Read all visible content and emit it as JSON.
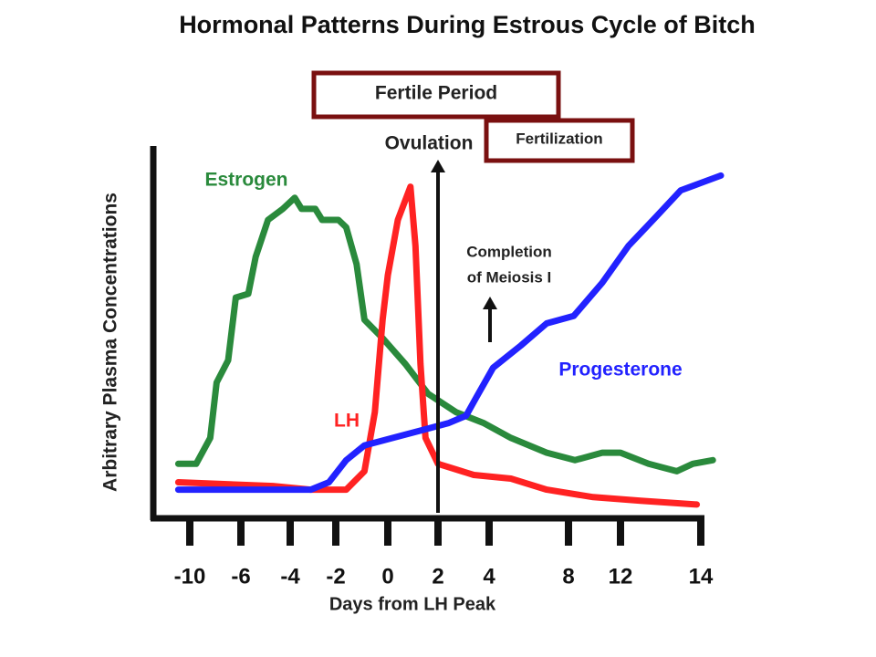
{
  "chart_data": {
    "type": "line",
    "title": "Hormonal Patterns During Estrous Cycle of Bitch",
    "xlabel": "Days from LH Peak",
    "ylabel": "Arbitrary Plasma Concentrations",
    "xticks": [
      -10,
      -6,
      -4,
      -2,
      0,
      2,
      4,
      8,
      12,
      14
    ],
    "ylim": [
      0,
      100
    ],
    "annotations": {
      "fertile_period": "Fertile Period",
      "ovulation": "Ovulation",
      "fertilization": "Fertilization",
      "meiosis": [
        "Completion",
        "of Meiosis I"
      ]
    },
    "series": [
      {
        "name": "Estrogen",
        "color": "#2a8a3c",
        "x": [
          -10.9,
          -9.5,
          -8.4,
          -7.9,
          -7.0,
          -6.4,
          -5.7,
          -5.4,
          -4.9,
          -4.3,
          -3.8,
          -3.5,
          -2.9,
          -2.6,
          -1.9,
          -1.6,
          -1.2,
          -0.9,
          -0.2,
          0.7,
          1.6,
          2.7,
          3.8,
          5.1,
          6.9,
          8.5,
          10.6,
          12,
          12.7,
          13.4,
          13.8,
          14.3
        ],
        "values": [
          14,
          14,
          21,
          36,
          42,
          59,
          60,
          70,
          80,
          83,
          86,
          83,
          83,
          80,
          80,
          78,
          68,
          53,
          48,
          41,
          33,
          28,
          25,
          21,
          17,
          15,
          17,
          17,
          14,
          12,
          14,
          15
        ]
      },
      {
        "name": "LH",
        "color": "#ff2222",
        "x": [
          -10.9,
          -4.7,
          -3.1,
          -1.6,
          -0.9,
          -0.5,
          -0.2,
          0,
          0.4,
          0.9,
          1.1,
          1.3,
          1.5,
          2,
          3.4,
          5.1,
          6.9,
          9.9,
          12.5,
          13.9
        ],
        "values": [
          9,
          8,
          7,
          7,
          12,
          28,
          53,
          65,
          80,
          89,
          73,
          41,
          21,
          14,
          11,
          10,
          7,
          5,
          4,
          3
        ]
      },
      {
        "name": "Progesterone",
        "color": "#2222ff",
        "x": [
          -10.9,
          -3.1,
          -2.3,
          -1.6,
          -0.9,
          0.2,
          1.3,
          2.4,
          3.1,
          3.5,
          4.2,
          5.6,
          6.9,
          8.4,
          10.6,
          12.2,
          12.9,
          13.5,
          14.0,
          14.5
        ],
        "values": [
          7,
          7,
          9,
          15,
          19,
          21,
          23,
          25,
          27,
          32,
          40,
          46,
          52,
          54,
          63,
          73,
          81,
          88,
          90,
          92
        ]
      }
    ]
  }
}
